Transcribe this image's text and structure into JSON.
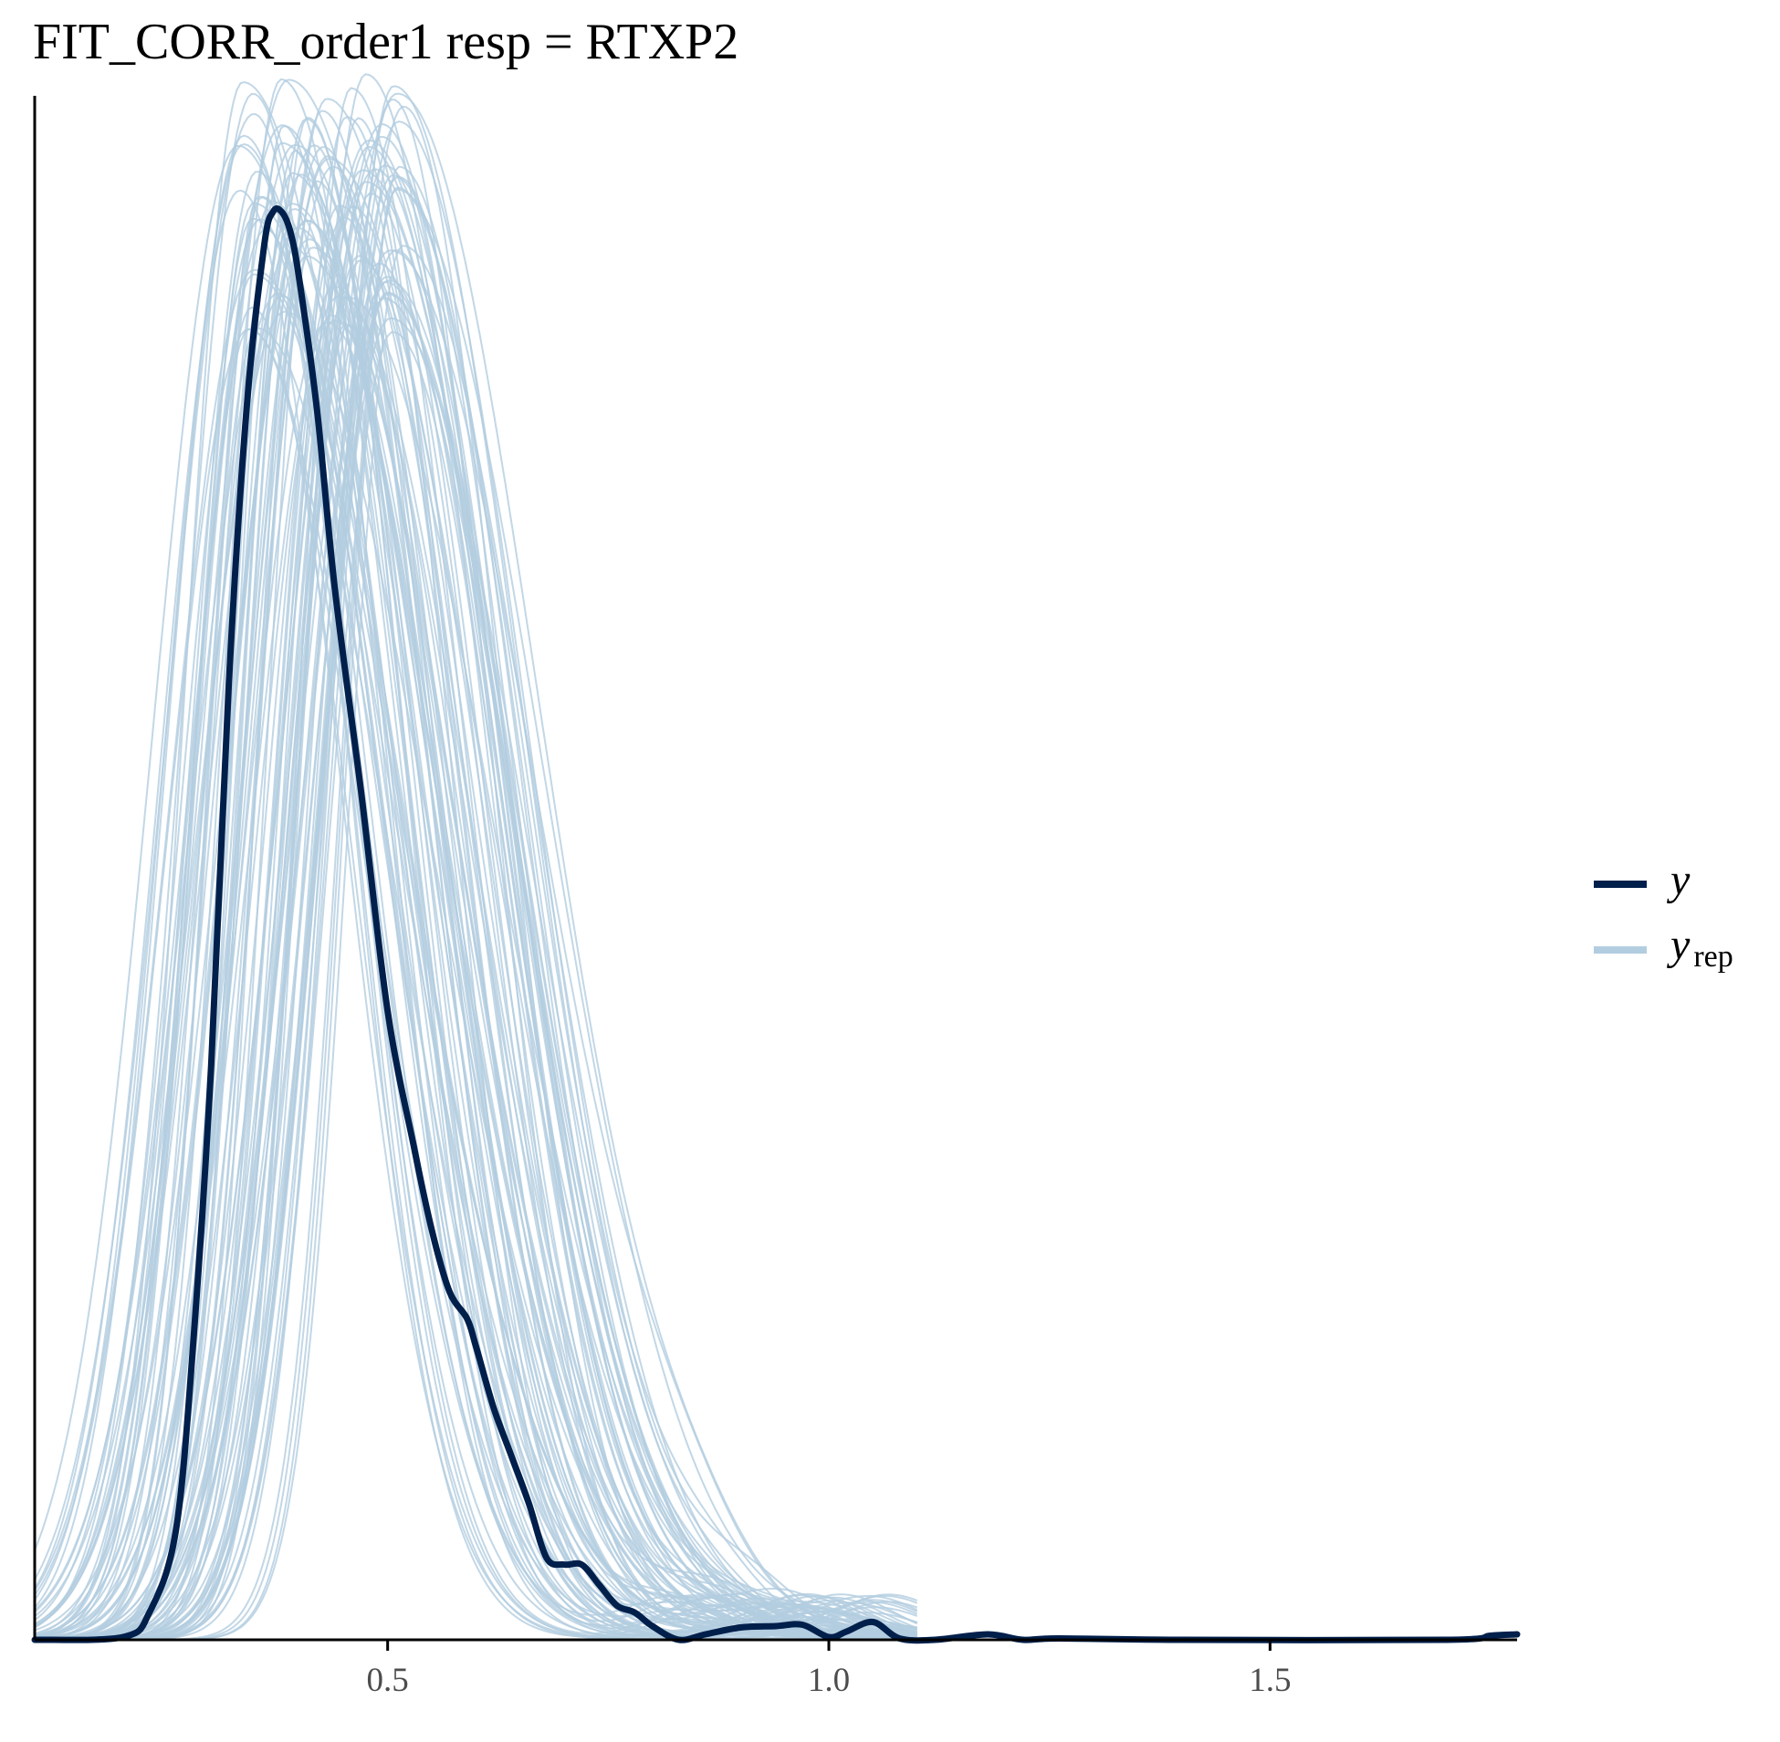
{
  "chart_data": {
    "type": "line",
    "title": "FIT_CORR_order1 resp = RTXP2",
    "xlabel": "",
    "ylabel": "",
    "xlim": [
      0.1,
      1.78
    ],
    "ylim": [
      0,
      1.13
    ],
    "x_ticks": [
      0.5,
      1.0,
      1.5
    ],
    "x_tick_labels": [
      "0.5",
      "1.0",
      "1.5"
    ],
    "grid": false,
    "legend": {
      "placement": "right",
      "entries": [
        {
          "label": "y",
          "subscript": "",
          "color": "#011f4b"
        },
        {
          "label": "y",
          "subscript": "rep",
          "color": "#b3cde0"
        }
      ]
    },
    "observed": {
      "color": "#011f4b",
      "x": [
        0.1,
        0.2,
        0.23,
        0.26,
        0.28,
        0.3,
        0.32,
        0.34,
        0.36,
        0.37,
        0.38,
        0.39,
        0.4,
        0.42,
        0.44,
        0.47,
        0.5,
        0.53,
        0.55,
        0.57,
        0.59,
        0.6,
        0.62,
        0.64,
        0.66,
        0.68,
        0.7,
        0.72,
        0.74,
        0.76,
        0.78,
        0.8,
        0.83,
        0.86,
        0.9,
        0.94,
        0.97,
        1.0,
        1.02,
        1.05,
        1.08,
        1.12,
        1.18,
        1.22,
        1.26,
        1.4,
        1.7,
        1.75,
        1.78
      ],
      "y": [
        0.0,
        0.002,
        0.02,
        0.08,
        0.22,
        0.42,
        0.7,
        0.9,
        1.02,
        1.045,
        1.045,
        1.03,
        0.995,
        0.9,
        0.77,
        0.62,
        0.46,
        0.36,
        0.3,
        0.255,
        0.235,
        0.215,
        0.17,
        0.135,
        0.1,
        0.06,
        0.055,
        0.055,
        0.04,
        0.025,
        0.02,
        0.01,
        0.0,
        0.004,
        0.009,
        0.01,
        0.011,
        0.002,
        0.006,
        0.013,
        0.001,
        0.0,
        0.004,
        0.0,
        0.001,
        0.0,
        0.0,
        0.003,
        0.004
      ]
    },
    "replicates": {
      "color": "#b3cde0",
      "count": 100,
      "shape": "right-skewed density",
      "peak_x_range": [
        0.33,
        0.52
      ],
      "peak_height_range": [
        0.95,
        1.15
      ]
    }
  }
}
